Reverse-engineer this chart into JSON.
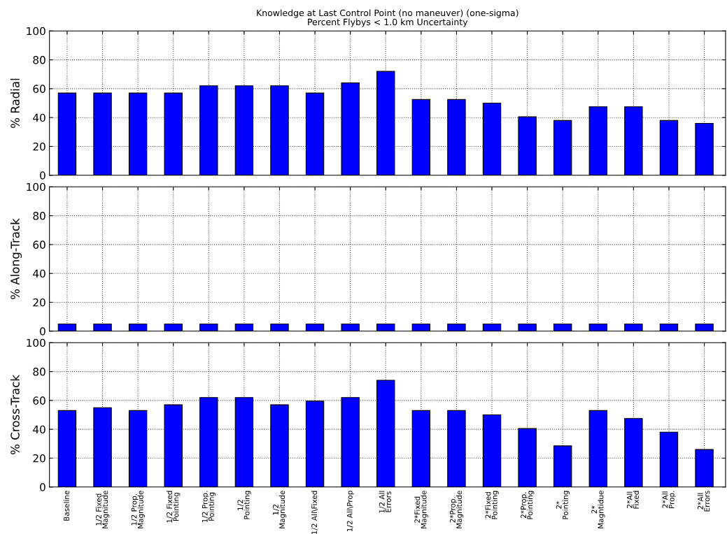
{
  "chart_data": [
    {
      "type": "bar",
      "title": "Knowledge at Last Control Point (no maneuver) (one-sigma)\nPercent Flybys < 1.0 km Uncertainty",
      "ylabel": "% Radial",
      "categories": [
        null,
        null,
        null,
        null,
        null,
        null,
        null,
        null,
        null,
        null,
        null,
        null,
        null,
        null,
        null,
        null,
        null,
        null,
        null
      ],
      "values": [
        57,
        57,
        57,
        57,
        62,
        62,
        62,
        57,
        64,
        72,
        52.5,
        52.5,
        50,
        40.5,
        38,
        47.5,
        47.5,
        38,
        36
      ],
      "color": "#0000ff",
      "ylim": [
        0,
        100
      ],
      "yticks": [
        0,
        20,
        40,
        60,
        80,
        100
      ],
      "grid": true,
      "tick_labels": "y"
    },
    {
      "type": "bar",
      "ylabel": "% Along-Track",
      "categories": [
        null,
        null,
        null,
        null,
        null,
        null,
        null,
        null,
        null,
        null,
        null,
        null,
        null,
        null,
        null,
        null,
        null,
        null,
        null
      ],
      "values": [
        5,
        5,
        5,
        5,
        5,
        5,
        5,
        5,
        5,
        5,
        5,
        5,
        5,
        5,
        5,
        5,
        5,
        5,
        5
      ],
      "color": "#0000ff",
      "ylim": [
        0,
        100
      ],
      "yticks": [
        0,
        20,
        40,
        60,
        80,
        100
      ],
      "grid": true,
      "tick_labels": "y"
    },
    {
      "type": "bar",
      "ylabel": "% Cross-Track",
      "categories": [
        "Baseline",
        "1/2 Fixed\nMagnitude",
        "1/2 Prop.\nMagnitude",
        "1/2 Fixed\nPointing",
        "1/2 Prop.\nPointing",
        "1/2\nPointing",
        "1/2\nMagnitude",
        "1/2 All\\Fixed",
        "1/2 All\\Prop",
        "1/2 All\nErrors",
        "2*Fixed\nMagnitude",
        "2*Prop.\nMagnitude",
        "2*Fixed\nPointing",
        "2*Prop.\nPointing",
        "2*\nPointing",
        "2*\nMagntidue",
        "2*All\nFixed",
        "2*All\nProp.",
        "2*All\nErrors"
      ],
      "values": [
        53,
        55,
        53,
        57,
        62,
        62,
        57,
        59.5,
        62,
        74,
        53,
        53,
        50,
        40.5,
        28.5,
        53,
        47.5,
        38,
        26
      ],
      "color": "#0000ff",
      "ylim": [
        0,
        100
      ],
      "yticks": [
        0,
        20,
        40,
        60,
        80,
        100
      ],
      "grid": true
    }
  ]
}
